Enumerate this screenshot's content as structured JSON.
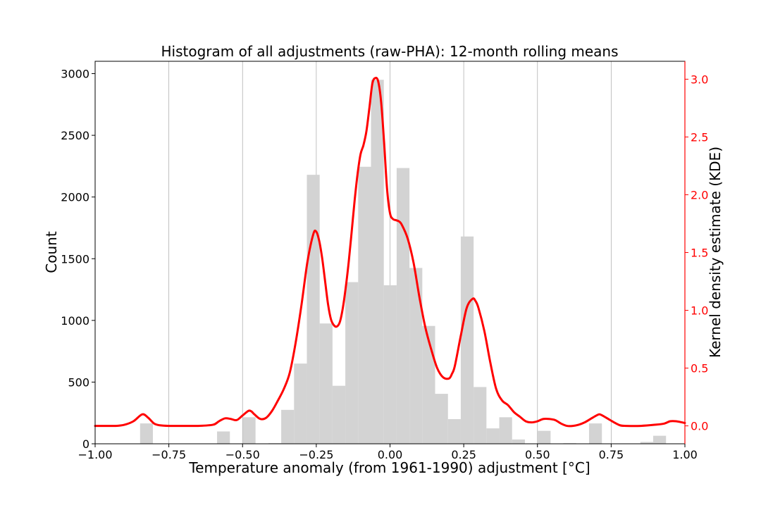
{
  "chart_data": {
    "type": "bar",
    "title": "Histogram of all adjustments (raw-PHA): 12-month rolling means",
    "xlabel": "Temperature anomaly (from 1961-1990) adjustment [°C]",
    "ylabel": "Count",
    "y2label": "Kernel density estimate (KDE)",
    "xlim": [
      -1.0,
      1.0
    ],
    "ylim": [
      0,
      3100
    ],
    "y2lim": [
      -0.155,
      3.155
    ],
    "x_ticks": [
      -1.0,
      -0.75,
      -0.5,
      -0.25,
      0.0,
      0.25,
      0.5,
      0.75,
      1.0
    ],
    "x_tick_labels": [
      "−1.00",
      "−0.75",
      "−0.50",
      "−0.25",
      "0.00",
      "0.25",
      "0.50",
      "0.75",
      "1.00"
    ],
    "y_ticks": [
      0,
      500,
      1000,
      1500,
      2000,
      2500,
      3000
    ],
    "y_tick_labels": [
      "0",
      "500",
      "1000",
      "1500",
      "2000",
      "2500",
      "3000"
    ],
    "y2_ticks": [
      0.0,
      0.5,
      1.0,
      1.5,
      2.0,
      2.5,
      3.0
    ],
    "y2_tick_labels": [
      "0.0",
      "0.5",
      "1.0",
      "1.5",
      "2.0",
      "2.5",
      "3.0"
    ],
    "grid": "vertical",
    "colors": {
      "bars": "#d3d3d3",
      "kde": "#ff0000",
      "grid": "#b0b0b0",
      "axes": "#000000"
    },
    "bin_width": 0.0435,
    "histogram": [
      {
        "x0": -0.8475,
        "count": 165
      },
      {
        "x0": -0.5865,
        "count": 100
      },
      {
        "x0": -0.4995,
        "count": 215
      },
      {
        "x0": -0.4125,
        "count": 5
      },
      {
        "x0": -0.369,
        "count": 275
      },
      {
        "x0": -0.3255,
        "count": 650
      },
      {
        "x0": -0.282,
        "count": 2180
      },
      {
        "x0": -0.2385,
        "count": 975
      },
      {
        "x0": -0.195,
        "count": 470
      },
      {
        "x0": -0.1515,
        "count": 1310
      },
      {
        "x0": -0.108,
        "count": 2245
      },
      {
        "x0": -0.0645,
        "count": 2950
      },
      {
        "x0": -0.021,
        "count": 1285
      },
      {
        "x0": 0.0225,
        "count": 2235
      },
      {
        "x0": 0.066,
        "count": 1425
      },
      {
        "x0": 0.1095,
        "count": 955
      },
      {
        "x0": 0.153,
        "count": 405
      },
      {
        "x0": 0.1965,
        "count": 200
      },
      {
        "x0": 0.24,
        "count": 1680
      },
      {
        "x0": 0.2835,
        "count": 460
      },
      {
        "x0": 0.327,
        "count": 125
      },
      {
        "x0": 0.3705,
        "count": 215
      },
      {
        "x0": 0.414,
        "count": 35
      },
      {
        "x0": 0.501,
        "count": 105
      },
      {
        "x0": 0.588,
        "count": 5
      },
      {
        "x0": 0.675,
        "count": 165
      },
      {
        "x0": 0.849,
        "count": 15
      },
      {
        "x0": 0.8925,
        "count": 65
      }
    ],
    "kde": {
      "x": [
        -1.0,
        -0.93,
        -0.9,
        -0.87,
        -0.84,
        -0.82,
        -0.8,
        -0.78,
        -0.75,
        -0.7,
        -0.65,
        -0.6,
        -0.58,
        -0.56,
        -0.54,
        -0.52,
        -0.5,
        -0.48,
        -0.47,
        -0.46,
        -0.44,
        -0.42,
        -0.4,
        -0.38,
        -0.36,
        -0.34,
        -0.32,
        -0.3,
        -0.28,
        -0.26,
        -0.25,
        -0.24,
        -0.23,
        -0.22,
        -0.21,
        -0.2,
        -0.19,
        -0.18,
        -0.17,
        -0.16,
        -0.15,
        -0.14,
        -0.13,
        -0.12,
        -0.11,
        -0.1,
        -0.09,
        -0.08,
        -0.07,
        -0.06,
        -0.05,
        -0.04,
        -0.03,
        -0.02,
        -0.01,
        0.0,
        0.01,
        0.02,
        0.03,
        0.04,
        0.06,
        0.08,
        0.1,
        0.12,
        0.14,
        0.16,
        0.18,
        0.2,
        0.21,
        0.22,
        0.24,
        0.26,
        0.28,
        0.29,
        0.3,
        0.32,
        0.34,
        0.36,
        0.38,
        0.4,
        0.42,
        0.44,
        0.46,
        0.48,
        0.5,
        0.52,
        0.54,
        0.56,
        0.58,
        0.6,
        0.62,
        0.64,
        0.66,
        0.68,
        0.7,
        0.71,
        0.72,
        0.74,
        0.76,
        0.78,
        0.8,
        0.85,
        0.9,
        0.93,
        0.95,
        0.97,
        1.0
      ],
      "y": [
        0.0,
        0.0,
        0.01,
        0.04,
        0.1,
        0.07,
        0.02,
        0.005,
        0.0,
        0.0,
        0.0,
        0.01,
        0.04,
        0.065,
        0.06,
        0.05,
        0.09,
        0.13,
        0.125,
        0.1,
        0.06,
        0.07,
        0.13,
        0.22,
        0.32,
        0.46,
        0.72,
        1.05,
        1.42,
        1.66,
        1.68,
        1.6,
        1.45,
        1.25,
        1.05,
        0.92,
        0.87,
        0.86,
        0.9,
        1.02,
        1.2,
        1.42,
        1.68,
        1.95,
        2.18,
        2.35,
        2.43,
        2.55,
        2.75,
        2.96,
        3.01,
        2.98,
        2.8,
        2.45,
        2.05,
        1.84,
        1.79,
        1.78,
        1.77,
        1.74,
        1.62,
        1.41,
        1.11,
        0.85,
        0.66,
        0.5,
        0.42,
        0.41,
        0.45,
        0.52,
        0.78,
        1.02,
        1.1,
        1.08,
        1.02,
        0.82,
        0.55,
        0.32,
        0.22,
        0.18,
        0.12,
        0.08,
        0.04,
        0.03,
        0.04,
        0.06,
        0.06,
        0.05,
        0.02,
        0.0,
        0.0,
        0.01,
        0.03,
        0.06,
        0.09,
        0.1,
        0.09,
        0.06,
        0.03,
        0.005,
        0.0,
        0.0,
        0.01,
        0.02,
        0.04,
        0.04,
        0.025
      ]
    }
  }
}
